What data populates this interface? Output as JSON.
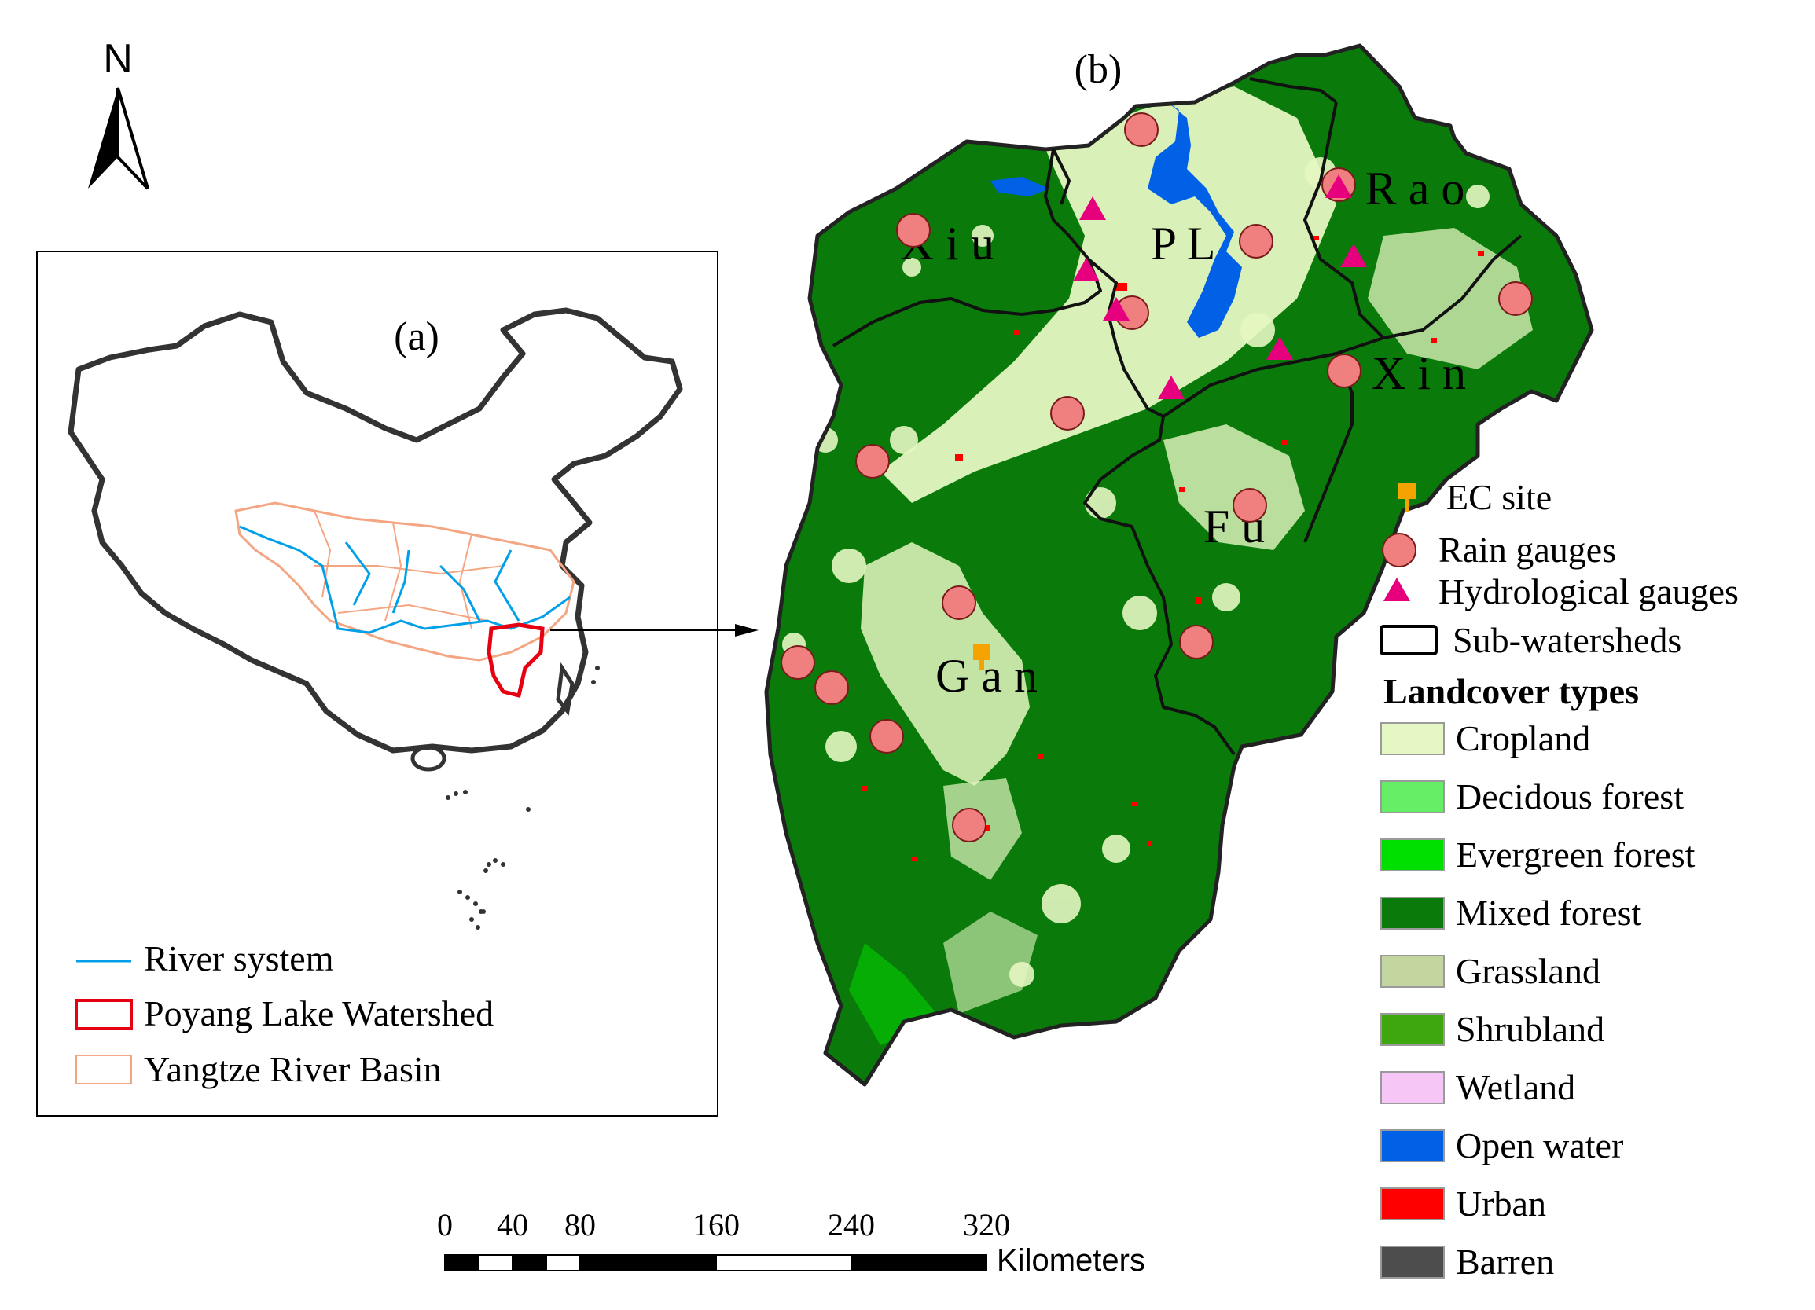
{
  "north_arrow": {
    "label": "N"
  },
  "inset": {
    "panel_label": "(a)",
    "legend": [
      {
        "label": "River system",
        "color": "#00a0e9",
        "symbol": "line"
      },
      {
        "label": "Poyang Lake Watershed",
        "color": "#e60012",
        "symbol": "box-thick"
      },
      {
        "label": "Yangtze River Basin",
        "color": "#f4a582",
        "symbol": "box-thin"
      }
    ]
  },
  "main_map": {
    "panel_label": "(b)",
    "subwatershed_labels": [
      "X i u",
      "P L",
      "R a o",
      "X i n",
      "F u",
      "G a n"
    ]
  },
  "legend": {
    "point_items": [
      {
        "label": "EC site",
        "icon": "pushpin-icon",
        "color": "#f5a300"
      },
      {
        "label": "Rain gauges",
        "icon": "circle-icon",
        "color": "#f08080"
      },
      {
        "label": "Hydrological gauges",
        "icon": "triangle-icon",
        "color": "#e6007e"
      },
      {
        "label": "Sub-watersheds",
        "icon": "outline-box-icon",
        "color": "#000000"
      }
    ],
    "landcover_title": "Landcover types",
    "landcover": [
      {
        "label": "Cropland",
        "color": "#e5f7c2"
      },
      {
        "label": "Decidous forest",
        "color": "#66ee66"
      },
      {
        "label": "Evergreen forest",
        "color": "#00e000"
      },
      {
        "label": "Mixed forest",
        "color": "#0a7a0a"
      },
      {
        "label": "Grassland",
        "color": "#c3d6a0"
      },
      {
        "label": "Shrubland",
        "color": "#3fa70e"
      },
      {
        "label": "Wetland",
        "color": "#f6c6f6"
      },
      {
        "label": "Open water",
        "color": "#0060e6"
      },
      {
        "label": "Urban",
        "color": "#ff0000"
      },
      {
        "label": "Barren",
        "color": "#4d4d4d"
      }
    ]
  },
  "scale_bar": {
    "ticks": [
      "0",
      "40",
      "80",
      "160",
      "240",
      "320"
    ],
    "unit": "Kilometers"
  }
}
